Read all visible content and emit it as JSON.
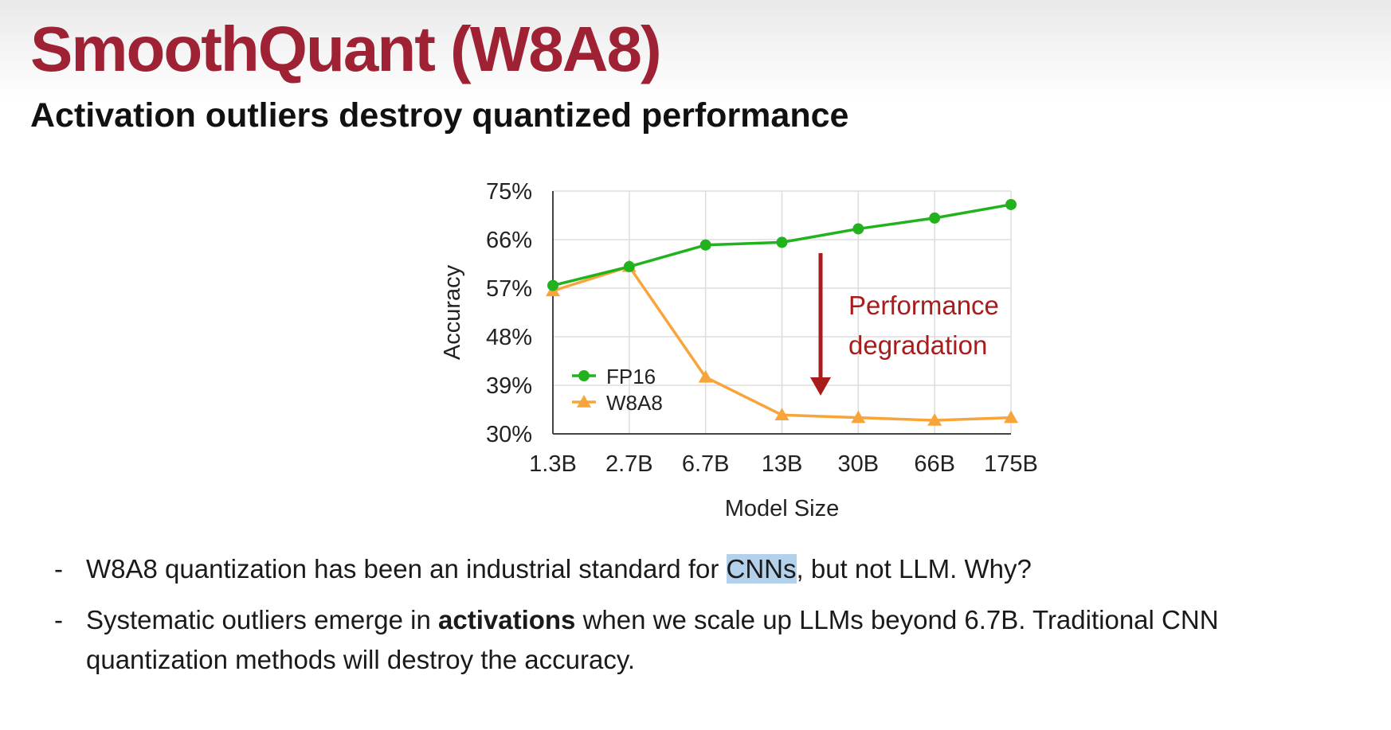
{
  "slide": {
    "title": "SmoothQuant (W8A8)",
    "subtitle": "Activation outliers destroy quantized performance"
  },
  "colors": {
    "title": "#9e2234",
    "fp16": "#22b21e",
    "w8a8": "#f7a53b",
    "annotation": "#a81c1c",
    "grid": "#dddddd",
    "selection": "#b3d1ea"
  },
  "chart_data": {
    "type": "line",
    "categories": [
      "1.3B",
      "2.7B",
      "6.7B",
      "13B",
      "30B",
      "66B",
      "175B"
    ],
    "series": [
      {
        "name": "FP16",
        "marker": "circle",
        "values": [
          57.5,
          61,
          65,
          65.5,
          68,
          70,
          72.5
        ]
      },
      {
        "name": "W8A8",
        "marker": "triangle",
        "values": [
          56.5,
          61,
          40.5,
          33.5,
          33,
          32.5,
          33
        ]
      }
    ],
    "xlabel": "Model Size",
    "ylabel": "Accuracy",
    "ylim": [
      30,
      75
    ],
    "yticks": [
      "30%",
      "39%",
      "48%",
      "57%",
      "66%",
      "75%"
    ],
    "grid": true,
    "legend_position": "lower-left",
    "annotation": {
      "lines": [
        "Performance",
        "degradation"
      ],
      "arrow": "down"
    }
  },
  "bullets": [
    {
      "dash": "-",
      "segments": [
        {
          "text": "W8A8 quantization has been an industrial standard for ",
          "style": "plain"
        },
        {
          "text": "CNNs",
          "style": "selected"
        },
        {
          "text": ", but not LLM. Why?",
          "style": "plain"
        }
      ]
    },
    {
      "dash": "-",
      "segments": [
        {
          "text": "Systematic outliers emerge in ",
          "style": "plain"
        },
        {
          "text": "activations",
          "style": "bold"
        },
        {
          "text": " when we scale up LLMs beyond 6.7B. Traditional CNN quantization methods will destroy the accuracy.",
          "style": "plain"
        }
      ]
    }
  ]
}
